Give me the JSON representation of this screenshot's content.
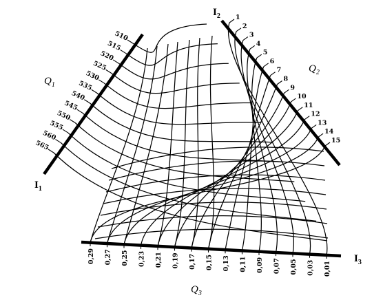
{
  "axes": {
    "I1": {
      "letter": "I",
      "sub": "1"
    },
    "I2": {
      "letter": "I",
      "sub": "2"
    },
    "I3": {
      "letter": "I",
      "sub": "3"
    },
    "Q1": {
      "letter": "Q",
      "sub": "1"
    },
    "Q2": {
      "letter": "Q",
      "sub": "2"
    },
    "Q3": {
      "letter": "Q",
      "sub": "3"
    }
  },
  "scale_I1": [
    "510",
    "515",
    "520",
    "525",
    "530",
    "535",
    "540",
    "545",
    "550",
    "555",
    "560",
    "565"
  ],
  "scale_I2": [
    "1",
    "2",
    "3",
    "4",
    "5",
    "6",
    "7",
    "8",
    "9",
    "10",
    "11",
    "12",
    "13",
    "14",
    "15"
  ],
  "scale_I3": [
    "0,29",
    "0,27",
    "0,25",
    "0,23",
    "0,21",
    "0,19",
    "0,17",
    "0,15",
    "0,13",
    "0,11",
    "0,09",
    "0,07",
    "0,05",
    "0,03",
    "0,01"
  ]
}
